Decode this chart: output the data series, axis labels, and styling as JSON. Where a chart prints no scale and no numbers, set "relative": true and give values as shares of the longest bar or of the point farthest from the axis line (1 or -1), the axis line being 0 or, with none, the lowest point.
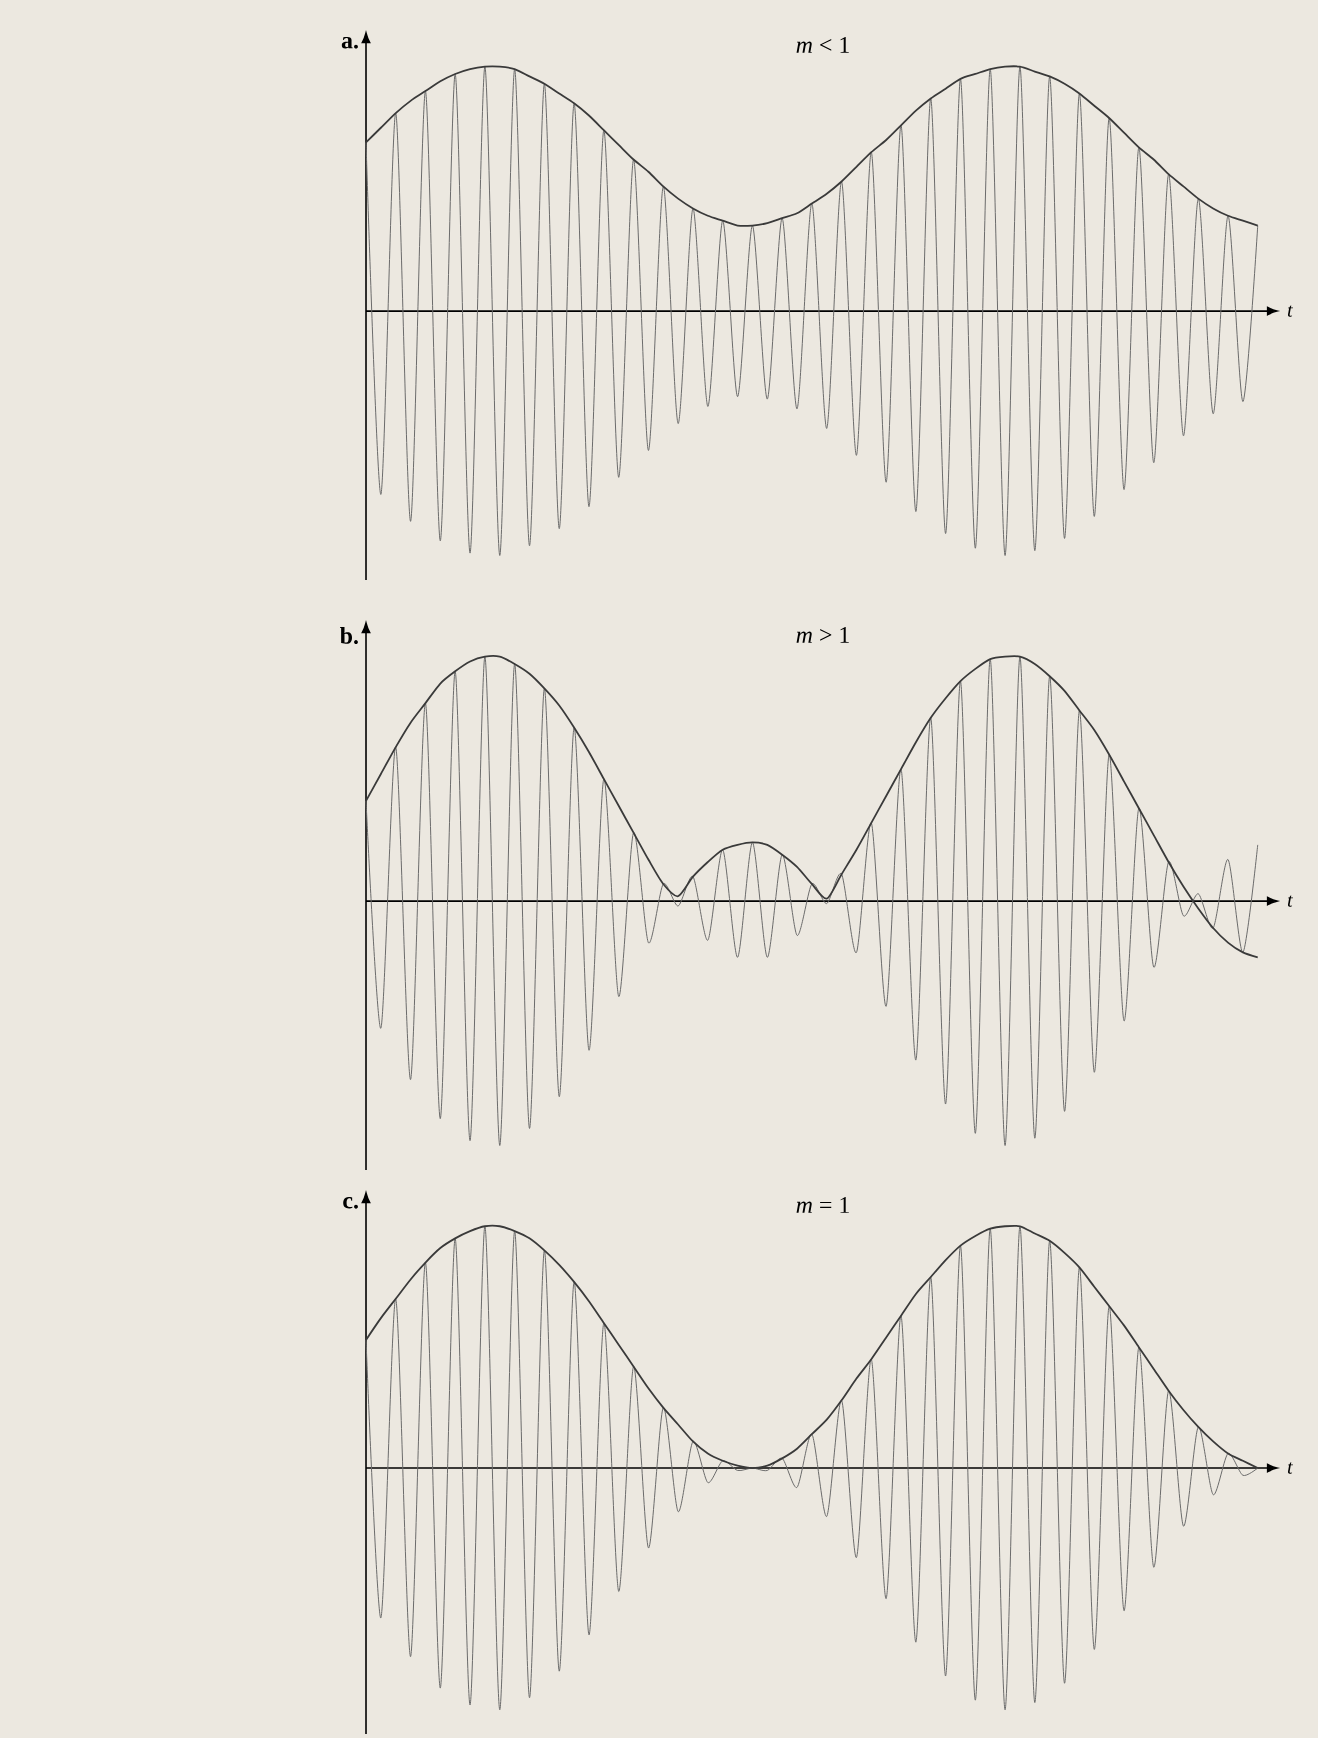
{
  "chart_data": [
    {
      "type": "line",
      "relative": true,
      "title": "a.",
      "subtitle": "*m* < 1",
      "xlabel": "t",
      "categories": [
        null,
        null,
        null,
        null,
        null,
        null,
        null,
        null,
        null,
        null,
        null,
        null,
        null,
        null,
        null,
        null,
        null,
        null,
        null,
        null,
        null,
        null,
        null,
        null,
        null,
        null,
        null,
        null,
        null,
        null,
        null,
        null,
        null,
        null,
        null,
        null,
        null,
        null,
        null,
        null,
        null,
        null,
        null,
        null,
        null,
        null,
        null,
        null,
        null,
        null,
        null,
        null,
        null,
        null,
        null,
        null,
        null,
        null,
        null,
        null,
        null
      ],
      "series": [
        {
          "color": "#6a6a6a",
          "values": [
            0.69,
            -0.75,
            0.81,
            -0.86,
            0.9,
            -0.94,
            0.97,
            -0.99,
            1.0,
            -1.0,
            0.99,
            -0.96,
            0.93,
            -0.89,
            0.85,
            -0.8,
            0.74,
            -0.68,
            0.62,
            -0.57,
            0.51,
            -0.46,
            0.42,
            -0.39,
            0.37,
            -0.35,
            0.35,
            -0.36,
            0.38,
            -0.4,
            0.44,
            -0.48,
            0.53,
            -0.59,
            0.65,
            -0.7,
            0.76,
            -0.82,
            0.87,
            -0.91,
            0.95,
            -0.97,
            0.99,
            -1.0,
            1.0,
            -0.98,
            0.96,
            -0.93,
            0.89,
            -0.84,
            0.79,
            -0.73,
            0.67,
            -0.62,
            0.56,
            -0.51,
            0.46,
            -0.42,
            0.39,
            -0.37,
            0.35
          ]
        },
        {
          "color": "#3a3a3a",
          "values": [
            0.69,
            0.75,
            0.81,
            0.86,
            0.9,
            0.94,
            0.97,
            0.99,
            1.0,
            1.0,
            0.99,
            0.96,
            0.93,
            0.89,
            0.85,
            0.8,
            0.74,
            0.68,
            0.62,
            0.57,
            0.51,
            0.46,
            0.42,
            0.39,
            0.37,
            0.35,
            0.35,
            0.36,
            0.38,
            0.4,
            0.44,
            0.48,
            0.53,
            0.59,
            0.65,
            0.7,
            0.76,
            0.82,
            0.87,
            0.91,
            0.95,
            0.97,
            0.99,
            1.0,
            1.0,
            0.98,
            0.96,
            0.93,
            0.89,
            0.84,
            0.79,
            0.73,
            0.67,
            0.62,
            0.56,
            0.51,
            0.46,
            0.42,
            0.39,
            0.37,
            0.35
          ]
        }
      ]
    },
    {
      "type": "line",
      "relative": true,
      "title": "b.",
      "subtitle": "*m* > 1",
      "xlabel": "t",
      "categories": [
        null,
        null,
        null,
        null,
        null,
        null,
        null,
        null,
        null,
        null,
        null,
        null,
        null,
        null,
        null,
        null,
        null,
        null,
        null,
        null,
        null,
        null,
        null,
        null,
        null,
        null,
        null,
        null,
        null,
        null,
        null,
        null,
        null,
        null,
        null,
        null,
        null,
        null,
        null,
        null,
        null,
        null,
        null,
        null,
        null,
        null,
        null,
        null,
        null,
        null,
        null,
        null,
        null,
        null,
        null,
        null,
        null,
        null,
        null,
        null,
        null
      ],
      "series": [
        {
          "color": "#6a6a6a",
          "values": [
            0.41,
            -0.52,
            0.63,
            -0.73,
            0.81,
            -0.89,
            0.94,
            -0.98,
            1.0,
            -1.0,
            0.97,
            -0.93,
            0.87,
            -0.8,
            0.71,
            -0.61,
            0.5,
            -0.39,
            0.28,
            -0.17,
            0.07,
            -0.02,
            0.1,
            -0.16,
            0.21,
            -0.23,
            0.24,
            -0.23,
            0.19,
            -0.14,
            0.07,
            -0.01,
            0.11,
            -0.21,
            0.32,
            -0.43,
            0.54,
            -0.65,
            0.75,
            -0.83,
            0.9,
            -0.95,
            0.99,
            -1.0,
            1.0,
            -0.97,
            0.92,
            -0.86,
            0.78,
            -0.7,
            0.6,
            -0.49,
            0.38,
            -0.27,
            0.16,
            -0.06,
            0.03,
            -0.11,
            0.17,
            -0.21,
            0.23
          ]
        },
        {
          "color": "#3a3a3a",
          "values": [
            0.41,
            0.52,
            0.63,
            0.73,
            0.81,
            0.89,
            0.94,
            0.98,
            1.0,
            1.0,
            0.97,
            0.93,
            0.87,
            0.8,
            0.71,
            0.61,
            0.5,
            0.39,
            0.28,
            0.17,
            0.07,
            0.02,
            0.1,
            0.16,
            0.21,
            0.23,
            0.24,
            0.23,
            0.19,
            0.14,
            0.07,
            0.01,
            0.11,
            0.21,
            0.32,
            0.43,
            0.54,
            0.65,
            0.75,
            0.83,
            0.9,
            0.95,
            0.99,
            1.0,
            1.0,
            0.97,
            0.92,
            0.86,
            0.78,
            0.7,
            0.6,
            0.49,
            0.38,
            0.27,
            0.16,
            0.06,
            -0.03,
            -0.11,
            -0.17,
            -0.21,
            -0.23
          ]
        }
      ]
    },
    {
      "type": "line",
      "relative": true,
      "title": "c.",
      "subtitle": "*m* = 1",
      "xlabel": "t",
      "categories": [
        null,
        null,
        null,
        null,
        null,
        null,
        null,
        null,
        null,
        null,
        null,
        null,
        null,
        null,
        null,
        null,
        null,
        null,
        null,
        null,
        null,
        null,
        null,
        null,
        null,
        null,
        null,
        null,
        null,
        null,
        null,
        null,
        null,
        null,
        null,
        null,
        null,
        null,
        null,
        null,
        null,
        null,
        null,
        null,
        null,
        null,
        null,
        null,
        null,
        null,
        null,
        null,
        null,
        null,
        null,
        null,
        null,
        null,
        null,
        null,
        null
      ],
      "series": [
        {
          "color": "#6a6a6a",
          "values": [
            0.53,
            -0.62,
            0.7,
            -0.78,
            0.85,
            -0.91,
            0.95,
            -0.98,
            1.0,
            -1.0,
            0.98,
            -0.95,
            0.9,
            -0.84,
            0.77,
            -0.69,
            0.6,
            -0.51,
            0.42,
            -0.33,
            0.25,
            -0.18,
            0.11,
            -0.06,
            0.03,
            -0.01,
            0.0,
            -0.01,
            0.04,
            -0.08,
            0.14,
            -0.2,
            0.28,
            -0.37,
            0.45,
            -0.54,
            0.63,
            -0.72,
            0.79,
            -0.86,
            0.92,
            -0.96,
            0.99,
            -1.0,
            1.0,
            -0.97,
            0.94,
            -0.89,
            0.83,
            -0.75,
            0.67,
            -0.59,
            0.5,
            -0.41,
            0.32,
            -0.24,
            0.17,
            -0.11,
            0.06,
            -0.03,
            0.0
          ]
        },
        {
          "color": "#3a3a3a",
          "values": [
            0.53,
            0.62,
            0.7,
            0.78,
            0.85,
            0.91,
            0.95,
            0.98,
            1.0,
            1.0,
            0.98,
            0.95,
            0.9,
            0.84,
            0.77,
            0.69,
            0.6,
            0.51,
            0.42,
            0.33,
            0.25,
            0.18,
            0.11,
            0.06,
            0.03,
            0.01,
            0.0,
            0.01,
            0.04,
            0.08,
            0.14,
            0.2,
            0.28,
            0.37,
            0.45,
            0.54,
            0.63,
            0.72,
            0.79,
            0.86,
            0.92,
            0.96,
            0.99,
            1.0,
            1.0,
            0.97,
            0.94,
            0.89,
            0.83,
            0.75,
            0.67,
            0.59,
            0.5,
            0.41,
            0.32,
            0.24,
            0.17,
            0.11,
            0.06,
            0.03,
            0.0
          ]
        }
      ]
    }
  ]
}
